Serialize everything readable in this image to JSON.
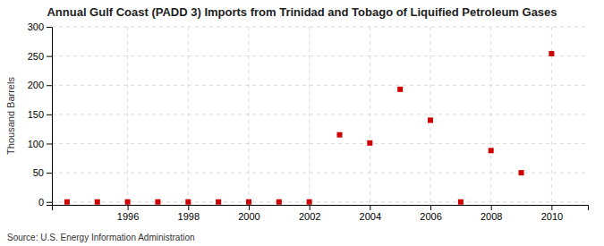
{
  "chart_data": {
    "type": "scatter",
    "title": "Annual Gulf Coast (PADD 3) Imports from Trinidad and Tobago of Liquified Petroleum Gases",
    "ylabel": "Thousand Barrels",
    "annotations": [
      "Source: U.S. Energy Information Administration"
    ],
    "x": [
      1994,
      1995,
      1996,
      1997,
      1998,
      1999,
      2000,
      2001,
      2002,
      2003,
      2004,
      2005,
      2006,
      2007,
      2008,
      2009,
      2010
    ],
    "values": [
      0,
      0,
      0,
      0,
      0,
      0,
      0,
      0,
      0,
      115,
      101,
      193,
      140,
      0,
      88,
      50,
      254
    ],
    "color": "#cc0000",
    "marker": "square",
    "xlim": [
      1993.5,
      2011.2
    ],
    "ylim": [
      -5,
      300
    ],
    "xticks": [
      1996,
      1998,
      2000,
      2002,
      2004,
      2006,
      2008,
      2010
    ],
    "yticks": [
      0,
      50,
      100,
      150,
      200,
      250,
      300
    ],
    "grid": true
  }
}
